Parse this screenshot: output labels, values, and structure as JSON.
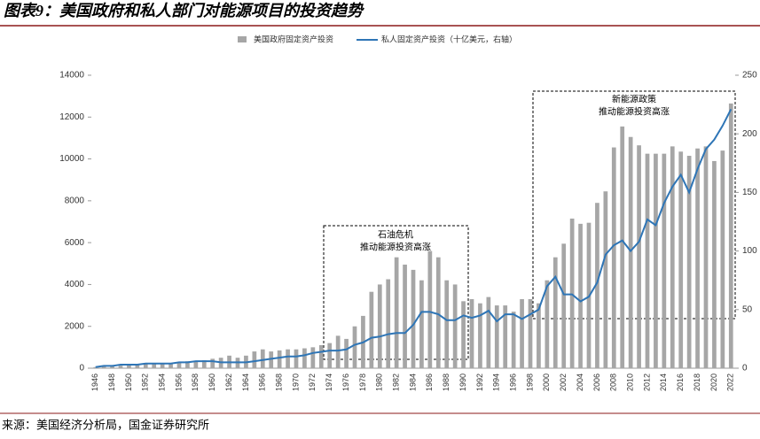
{
  "chart_data": {
    "type": "bar_line",
    "title": "图表9：美国政府和私人部门对能源项目的投资趋势",
    "source": "来源：美国经济分析局，国金证券研究所",
    "categories": [
      "1946",
      null,
      "1948",
      null,
      "1950",
      null,
      "1952",
      null,
      "1954",
      null,
      "1956",
      null,
      "1958",
      null,
      "1960",
      null,
      "1962",
      null,
      "1964",
      null,
      "1966",
      null,
      "1968",
      null,
      "1970",
      null,
      "1972",
      null,
      "1974",
      null,
      "1976",
      null,
      "1978",
      null,
      "1980",
      null,
      "1982",
      null,
      "1984",
      null,
      "1986",
      null,
      "1988",
      null,
      "1990",
      null,
      "1992",
      null,
      "1994",
      null,
      "1996",
      null,
      "1998",
      null,
      "2000",
      null,
      "2002",
      null,
      "2004",
      null,
      "2006",
      null,
      "2008",
      null,
      "2010",
      null,
      "2012",
      null,
      "2014",
      null,
      "2016",
      null,
      "2018",
      null,
      "2020",
      null,
      "2022"
    ],
    "series": [
      {
        "name": "美国政府固定资产投资",
        "color": "#a6a6a6",
        "type": "bar",
        "values": [
          50,
          80,
          100,
          120,
          150,
          180,
          200,
          220,
          200,
          250,
          300,
          330,
          320,
          380,
          450,
          500,
          600,
          500,
          600,
          800,
          900,
          800,
          850,
          900,
          900,
          950,
          1000,
          1100,
          1200,
          1550,
          1400,
          2000,
          2500,
          3650,
          4000,
          4250,
          5300,
          4950,
          4700,
          4200,
          5600,
          5300,
          4200,
          4000,
          3200,
          3300,
          3100,
          3400,
          3000,
          3000,
          2700,
          3300,
          3300,
          3100,
          4200,
          5300,
          5950,
          7150,
          6900,
          6950,
          7900,
          8450,
          10550,
          11550,
          11050,
          10650,
          10250,
          10250,
          10250,
          10600,
          10350,
          10150,
          10500,
          10600,
          9900,
          10400,
          12650
        ]
      },
      {
        "name": "私人固定资产投资（十亿美元，右轴）",
        "color": "#2e75b6",
        "type": "line",
        "axis": "y2",
        "values": [
          1,
          2,
          2,
          3,
          3,
          3,
          4,
          4,
          4,
          4,
          5,
          5,
          6,
          6,
          6,
          5,
          5,
          5,
          5,
          6,
          7,
          8,
          9,
          10,
          10,
          11,
          13,
          14,
          15,
          15,
          16,
          20,
          22,
          26,
          27,
          29,
          30,
          30,
          37,
          48,
          48,
          46,
          41,
          41,
          45,
          43,
          45,
          49,
          40,
          46,
          46,
          42,
          46,
          50,
          70,
          78,
          63,
          63,
          57,
          61,
          73,
          97,
          105,
          109,
          100,
          108,
          127,
          122,
          141,
          155,
          165,
          150,
          170,
          187,
          195,
          207,
          221
        ]
      }
    ],
    "ylim": [
      0,
      14000
    ],
    "yticks": [
      0,
      2000,
      4000,
      6000,
      8000,
      10000,
      12000,
      14000
    ],
    "y2lim": [
      0,
      250
    ],
    "y2ticks": [
      0,
      50,
      100,
      150,
      200,
      250
    ],
    "annotations": [
      {
        "lines": [
          "石油危机",
          "推动能源投资高涨"
        ]
      },
      {
        "lines": [
          "新能源政策",
          "推动能源投资高涨"
        ]
      }
    ]
  }
}
